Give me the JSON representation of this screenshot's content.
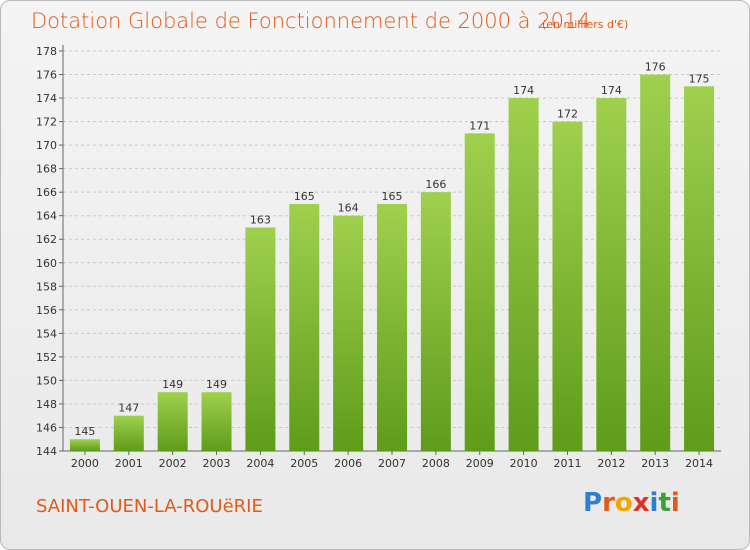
{
  "title": "Dotation Globale de Fonctionnement de 2000 à 2014",
  "unit_note": "(en milliers d'€)",
  "commune": "SAINT-OUEN-LA-ROUëRIE",
  "logo": {
    "text": "Proxiti",
    "letter_colors": [
      "#2f7fd0",
      "#e05a18",
      "#f0a500",
      "#e0302a",
      "#2f7fd0",
      "#3aa235",
      "#e05a18"
    ]
  },
  "colors": {
    "bar_top": "#9fd04e",
    "bar_bottom": "#5e9c1a",
    "grid": "#c8c8c8",
    "text_accent": "#e05a18"
  },
  "chart_data": {
    "type": "bar",
    "categories": [
      "2000",
      "2001",
      "2002",
      "2003",
      "2004",
      "2005",
      "2006",
      "2007",
      "2008",
      "2009",
      "2010",
      "2011",
      "2012",
      "2013",
      "2014"
    ],
    "values": [
      145,
      147,
      149,
      149,
      163,
      165,
      164,
      165,
      166,
      171,
      174,
      172,
      174,
      176,
      175
    ],
    "ylim": [
      144,
      178
    ],
    "yticks": [
      144,
      146,
      148,
      150,
      152,
      154,
      156,
      158,
      160,
      162,
      164,
      166,
      168,
      170,
      172,
      174,
      176,
      178
    ],
    "grid": true,
    "data_labels": true,
    "legend": "none"
  }
}
